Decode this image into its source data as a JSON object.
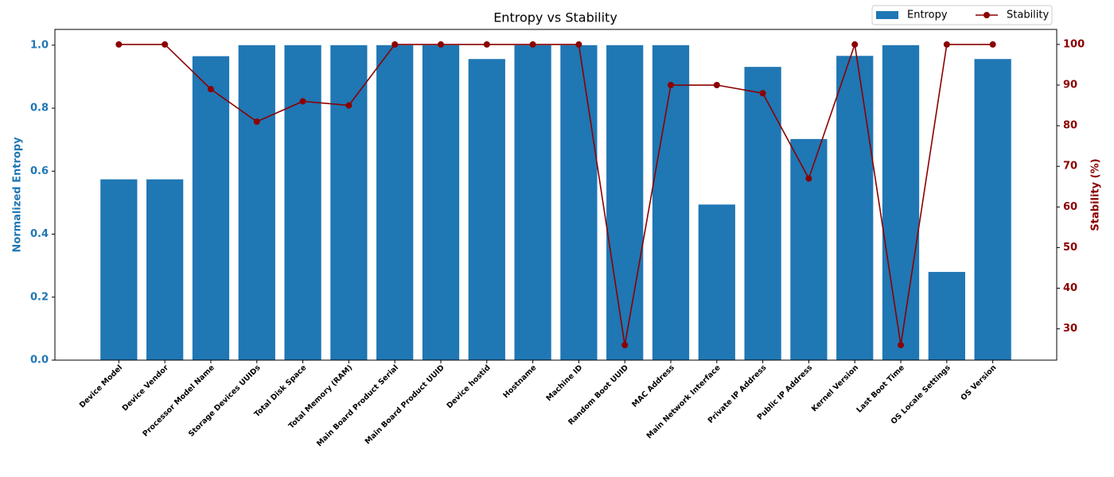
{
  "chart_data": {
    "type": "bar",
    "title": "Entropy vs Stability",
    "ylabel": "Normalized Entropy",
    "y2label": "Stability (%)",
    "categories": [
      "Device Model",
      "Device Vendor",
      "Processor Model Name",
      "Storage Devices UUIDs",
      "Total Disk Space",
      "Total Memory (RAM)",
      "Main Board Product Serial",
      "Main Board Product UUID",
      "Device hostid",
      "Hostname",
      "Machine ID",
      "Random Boot UUID",
      "MAC Address",
      "Main Network Interface",
      "Private IP Address",
      "Public IP Address",
      "Kernel Version",
      "Last Boot Time",
      "OS Locale Settings",
      "OS Version"
    ],
    "series": [
      {
        "name": "Entropy",
        "type": "bar",
        "color": "#1f77b4",
        "values": [
          0.574,
          0.574,
          0.965,
          1.0,
          1.0,
          1.0,
          1.0,
          1.0,
          0.956,
          1.0,
          1.0,
          1.0,
          1.0,
          0.494,
          0.931,
          0.702,
          0.966,
          1.0,
          0.28,
          0.956
        ]
      },
      {
        "name": "Stability",
        "type": "line",
        "axis": "y2",
        "color": "#8b0000",
        "values": [
          100,
          100,
          89,
          81,
          86,
          85,
          100,
          100,
          100,
          100,
          100,
          26,
          90,
          90,
          88,
          67,
          100,
          26,
          100,
          100
        ]
      }
    ],
    "ylim": [
      0,
      1.05
    ],
    "yticks": [
      {
        "value": 0,
        "label": "0.0"
      },
      {
        "value": 0.2,
        "label": "0.2"
      },
      {
        "value": 0.4,
        "label": "0.4"
      },
      {
        "value": 0.6,
        "label": "0.6"
      },
      {
        "value": 0.8,
        "label": "0.8"
      },
      {
        "value": 1,
        "label": "1.0"
      }
    ],
    "y2lim": [
      22.3,
      103.7
    ],
    "y2ticks": [
      30,
      40,
      50,
      60,
      70,
      80,
      90,
      100
    ],
    "legend": "top right",
    "grid": false
  }
}
